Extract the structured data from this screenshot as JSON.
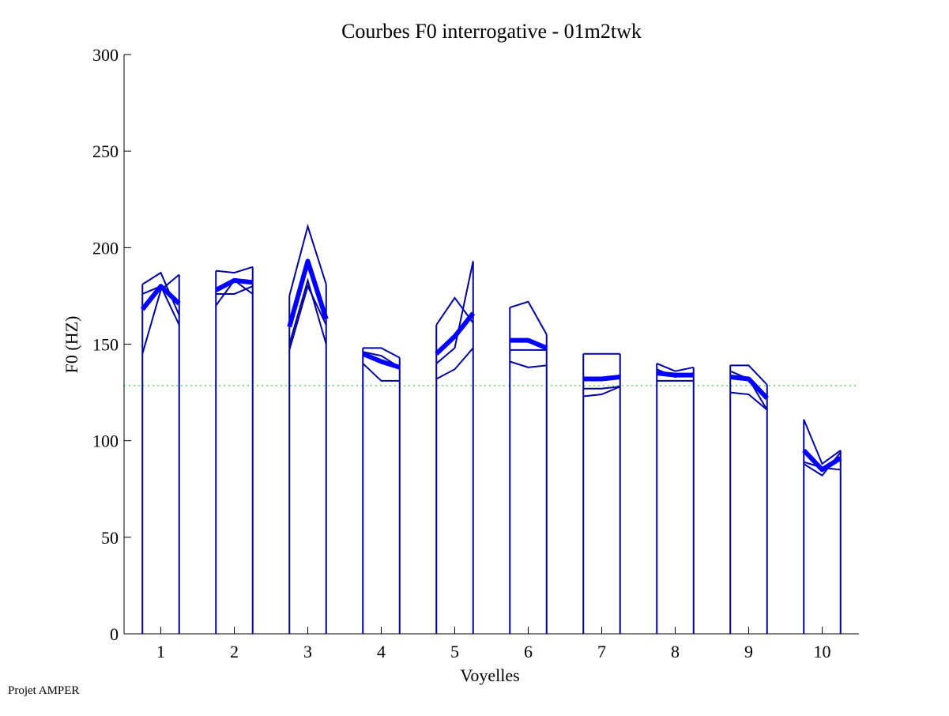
{
  "chart_data": {
    "type": "line",
    "title": "Courbes F0 interrogative - 01m2twk",
    "xlabel": "Voyelles",
    "ylabel": "F0 (HZ)",
    "footer": "Projet AMPER",
    "xlim": [
      0.5,
      10.5
    ],
    "ylim": [
      0,
      300
    ],
    "xticks": [
      "1",
      "2",
      "3",
      "4",
      "5",
      "6",
      "7",
      "8",
      "9",
      "10"
    ],
    "yticks": [
      "0",
      "50",
      "100",
      "150",
      "200",
      "250",
      "300"
    ],
    "point_offsets": [
      -0.25,
      0,
      0.25
    ],
    "reference_line": 128.5,
    "colors": {
      "repetition": "#00009e",
      "mean": "#0000ff",
      "reference": "#00c000"
    },
    "vowels": [
      {
        "x": 1,
        "repetitions": [
          [
            181,
            187,
            165
          ],
          [
            176,
            180,
            160
          ],
          [
            145,
            178,
            186
          ]
        ],
        "mean": [
          168,
          180,
          171
        ]
      },
      {
        "x": 2,
        "repetitions": [
          [
            188,
            187,
            190
          ],
          [
            176,
            176,
            180
          ],
          [
            170,
            183,
            176
          ]
        ],
        "mean": [
          178,
          183,
          182
        ]
      },
      {
        "x": 3,
        "repetitions": [
          [
            175,
            211,
            181
          ],
          [
            150,
            183,
            150
          ],
          [
            147,
            180,
            160
          ]
        ],
        "mean": [
          159,
          193,
          163
        ]
      },
      {
        "x": 4,
        "repetitions": [
          [
            148,
            148,
            143
          ],
          [
            146,
            144,
            138
          ],
          [
            140,
            131,
            131
          ]
        ],
        "mean": [
          145,
          141,
          138
        ]
      },
      {
        "x": 5,
        "repetitions": [
          [
            160,
            174,
            161
          ],
          [
            140,
            148,
            193
          ],
          [
            132,
            137,
            148
          ]
        ],
        "mean": [
          145,
          154,
          166
        ]
      },
      {
        "x": 6,
        "repetitions": [
          [
            169,
            172,
            155
          ],
          [
            147,
            147,
            147
          ],
          [
            141,
            138,
            139
          ]
        ],
        "mean": [
          152,
          152,
          148
        ]
      },
      {
        "x": 7,
        "repetitions": [
          [
            145,
            145,
            145
          ],
          [
            127,
            127,
            128
          ],
          [
            123,
            124,
            128
          ]
        ],
        "mean": [
          132,
          132,
          133
        ]
      },
      {
        "x": 8,
        "repetitions": [
          [
            140,
            136,
            138
          ],
          [
            131,
            131,
            131
          ],
          [
            137,
            133,
            135
          ]
        ],
        "mean": [
          135,
          134,
          134
        ]
      },
      {
        "x": 9,
        "repetitions": [
          [
            139,
            139,
            129
          ],
          [
            136,
            132,
            116
          ],
          [
            125,
            124,
            116
          ]
        ],
        "mean": [
          133,
          132,
          122
        ]
      },
      {
        "x": 10,
        "repetitions": [
          [
            111,
            88,
            95
          ],
          [
            88,
            82,
            94
          ],
          [
            89,
            86,
            85
          ]
        ],
        "mean": [
          95,
          85,
          91
        ]
      }
    ]
  }
}
